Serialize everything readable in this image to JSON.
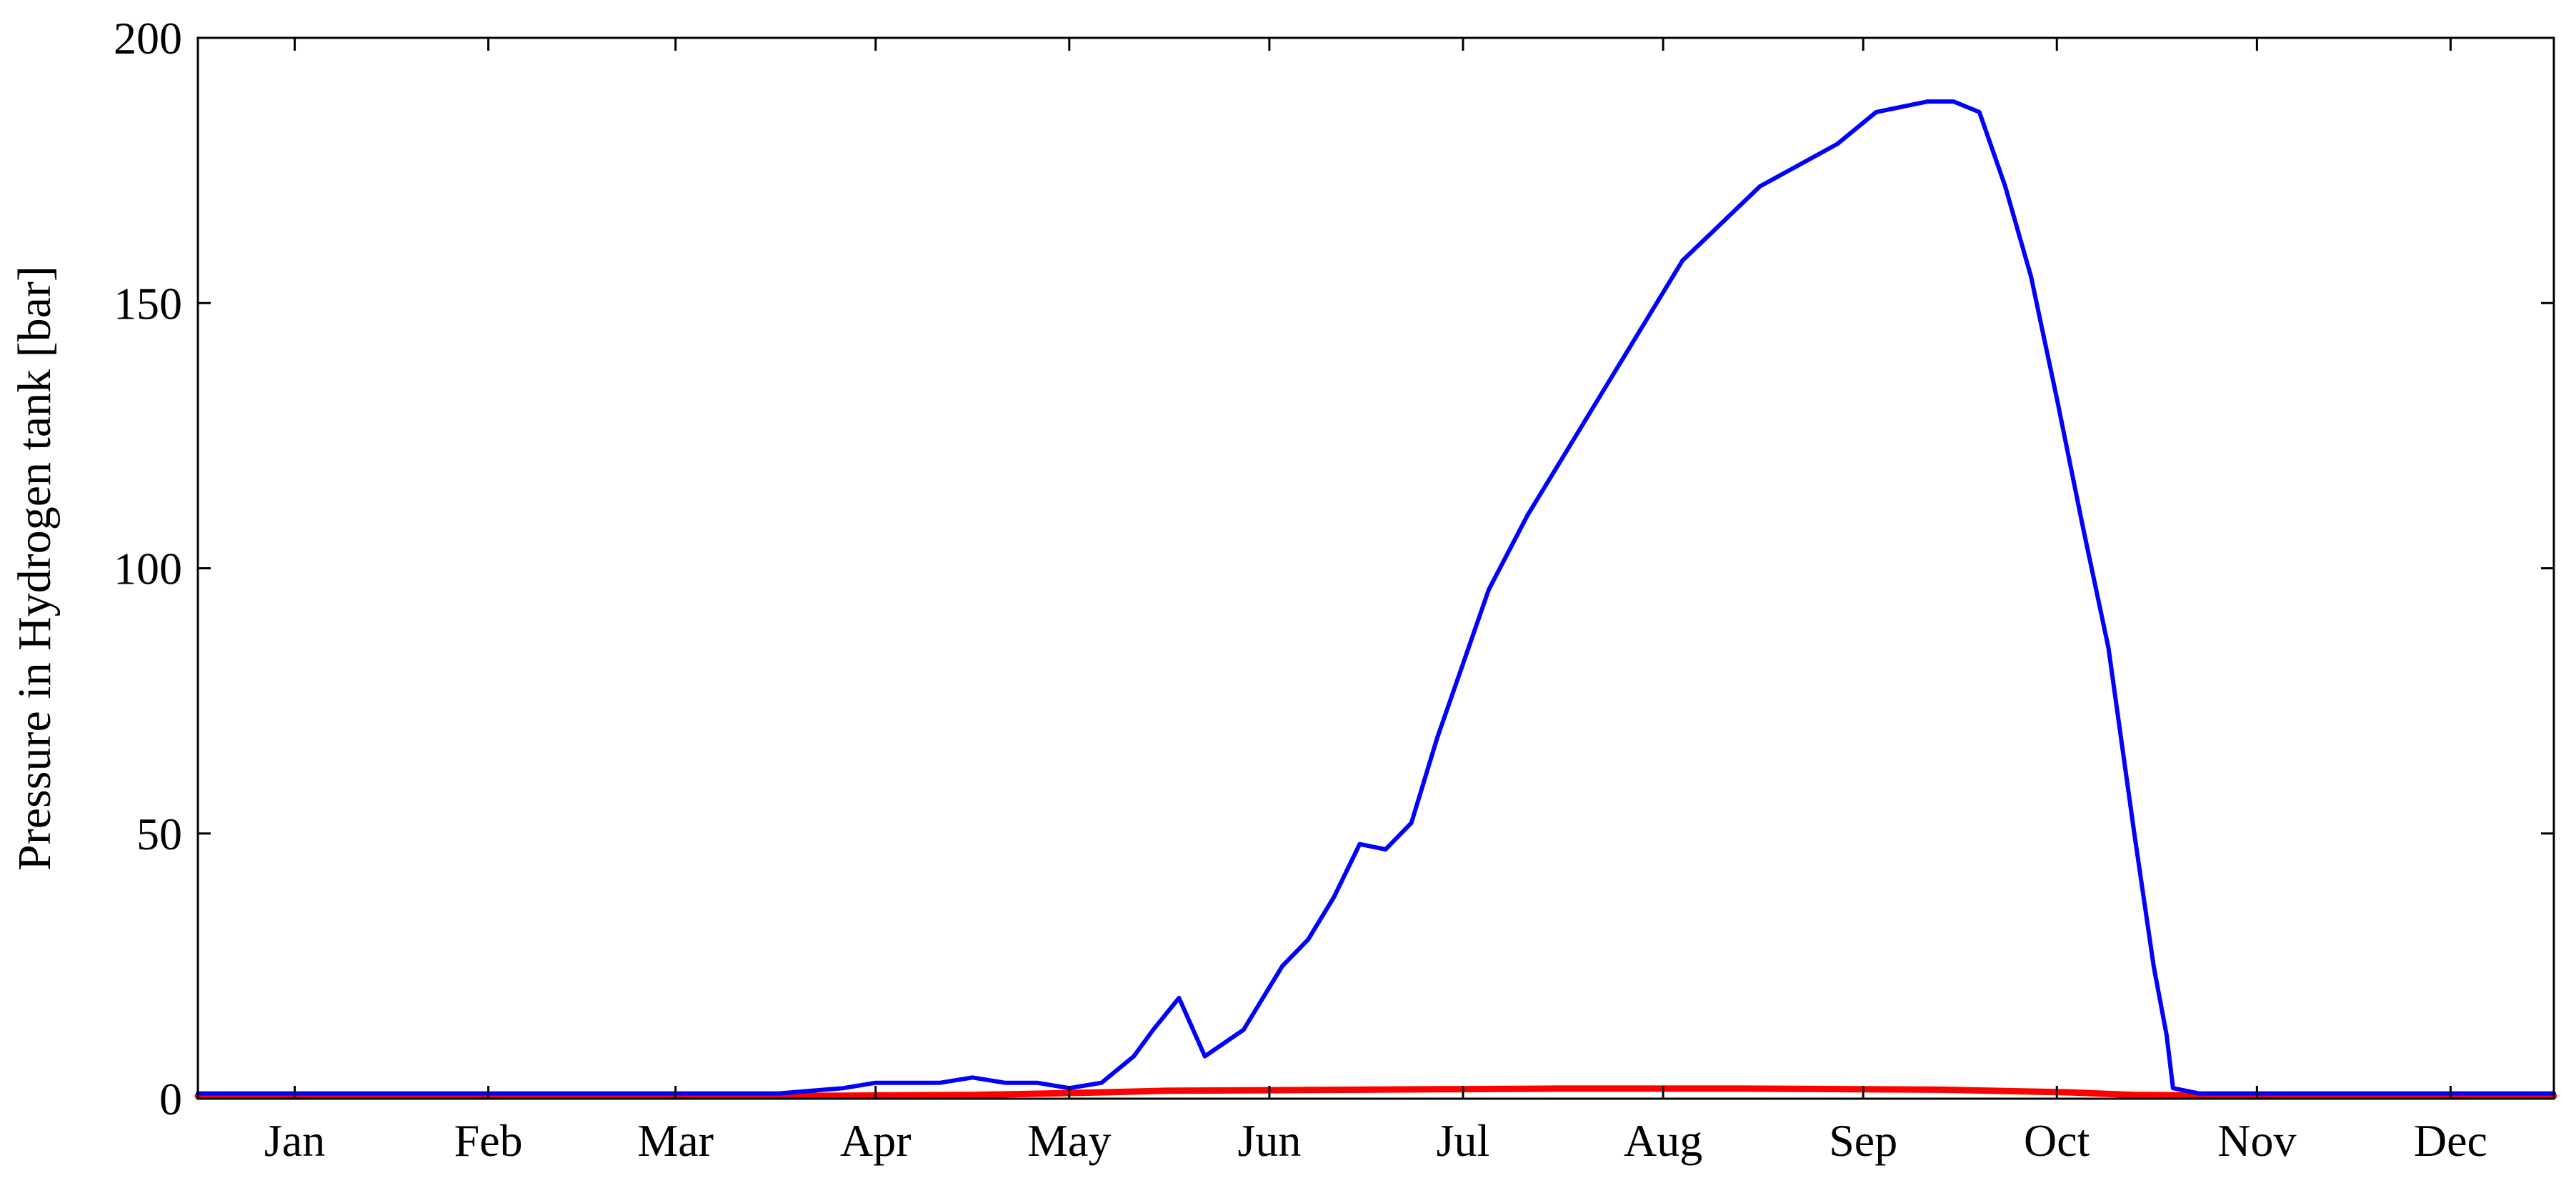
{
  "chart_data": {
    "type": "line",
    "title": "",
    "xlabel": "",
    "ylabel": "Pressure in Hydrogen tank [bar]",
    "ylim": [
      0,
      200
    ],
    "xlim": [
      0,
      365
    ],
    "grid": false,
    "x_tick_positions": [
      15,
      45,
      74,
      105,
      135,
      166,
      196,
      227,
      258,
      288,
      319,
      349
    ],
    "x_tick_labels": [
      "Jan",
      "Feb",
      "Mar",
      "Apr",
      "May",
      "Jun",
      "Jul",
      "Aug",
      "Sep",
      "Oct",
      "Nov",
      "Dec"
    ],
    "y_ticks": [
      0,
      50,
      100,
      150,
      200
    ],
    "series": [
      {
        "color": "#0000ff",
        "x_unit": "day of year",
        "x": [
          0,
          30,
          60,
          90,
          100,
          105,
          110,
          115,
          120,
          125,
          130,
          135,
          140,
          145,
          148,
          152,
          156,
          162,
          168,
          172,
          176,
          180,
          184,
          188,
          192,
          196,
          200,
          206,
          212,
          218,
          224,
          230,
          236,
          242,
          248,
          254,
          260,
          264,
          268,
          272,
          276,
          280,
          284,
          288,
          292,
          296,
          300,
          303,
          305,
          306,
          310,
          330,
          350,
          365
        ],
        "y": [
          1,
          1,
          1,
          1,
          2,
          3,
          3,
          3,
          4,
          3,
          3,
          2,
          3,
          8,
          13,
          19,
          8,
          13,
          25,
          30,
          38,
          48,
          47,
          52,
          68,
          82,
          96,
          110,
          122,
          134,
          146,
          158,
          165,
          172,
          176,
          180,
          186,
          187,
          188,
          188,
          186,
          172,
          155,
          132,
          108,
          85,
          50,
          25,
          12,
          2,
          1,
          1,
          1,
          1
        ]
      },
      {
        "color": "#ff0000",
        "x_unit": "day of year",
        "x": [
          0,
          90,
          120,
          140,
          150,
          180,
          210,
          240,
          270,
          290,
          300,
          320,
          365
        ],
        "y": [
          0.5,
          0.5,
          0.7,
          1.2,
          1.5,
          1.7,
          1.9,
          1.9,
          1.7,
          1.2,
          0.7,
          0.5,
          0.5
        ]
      }
    ]
  }
}
